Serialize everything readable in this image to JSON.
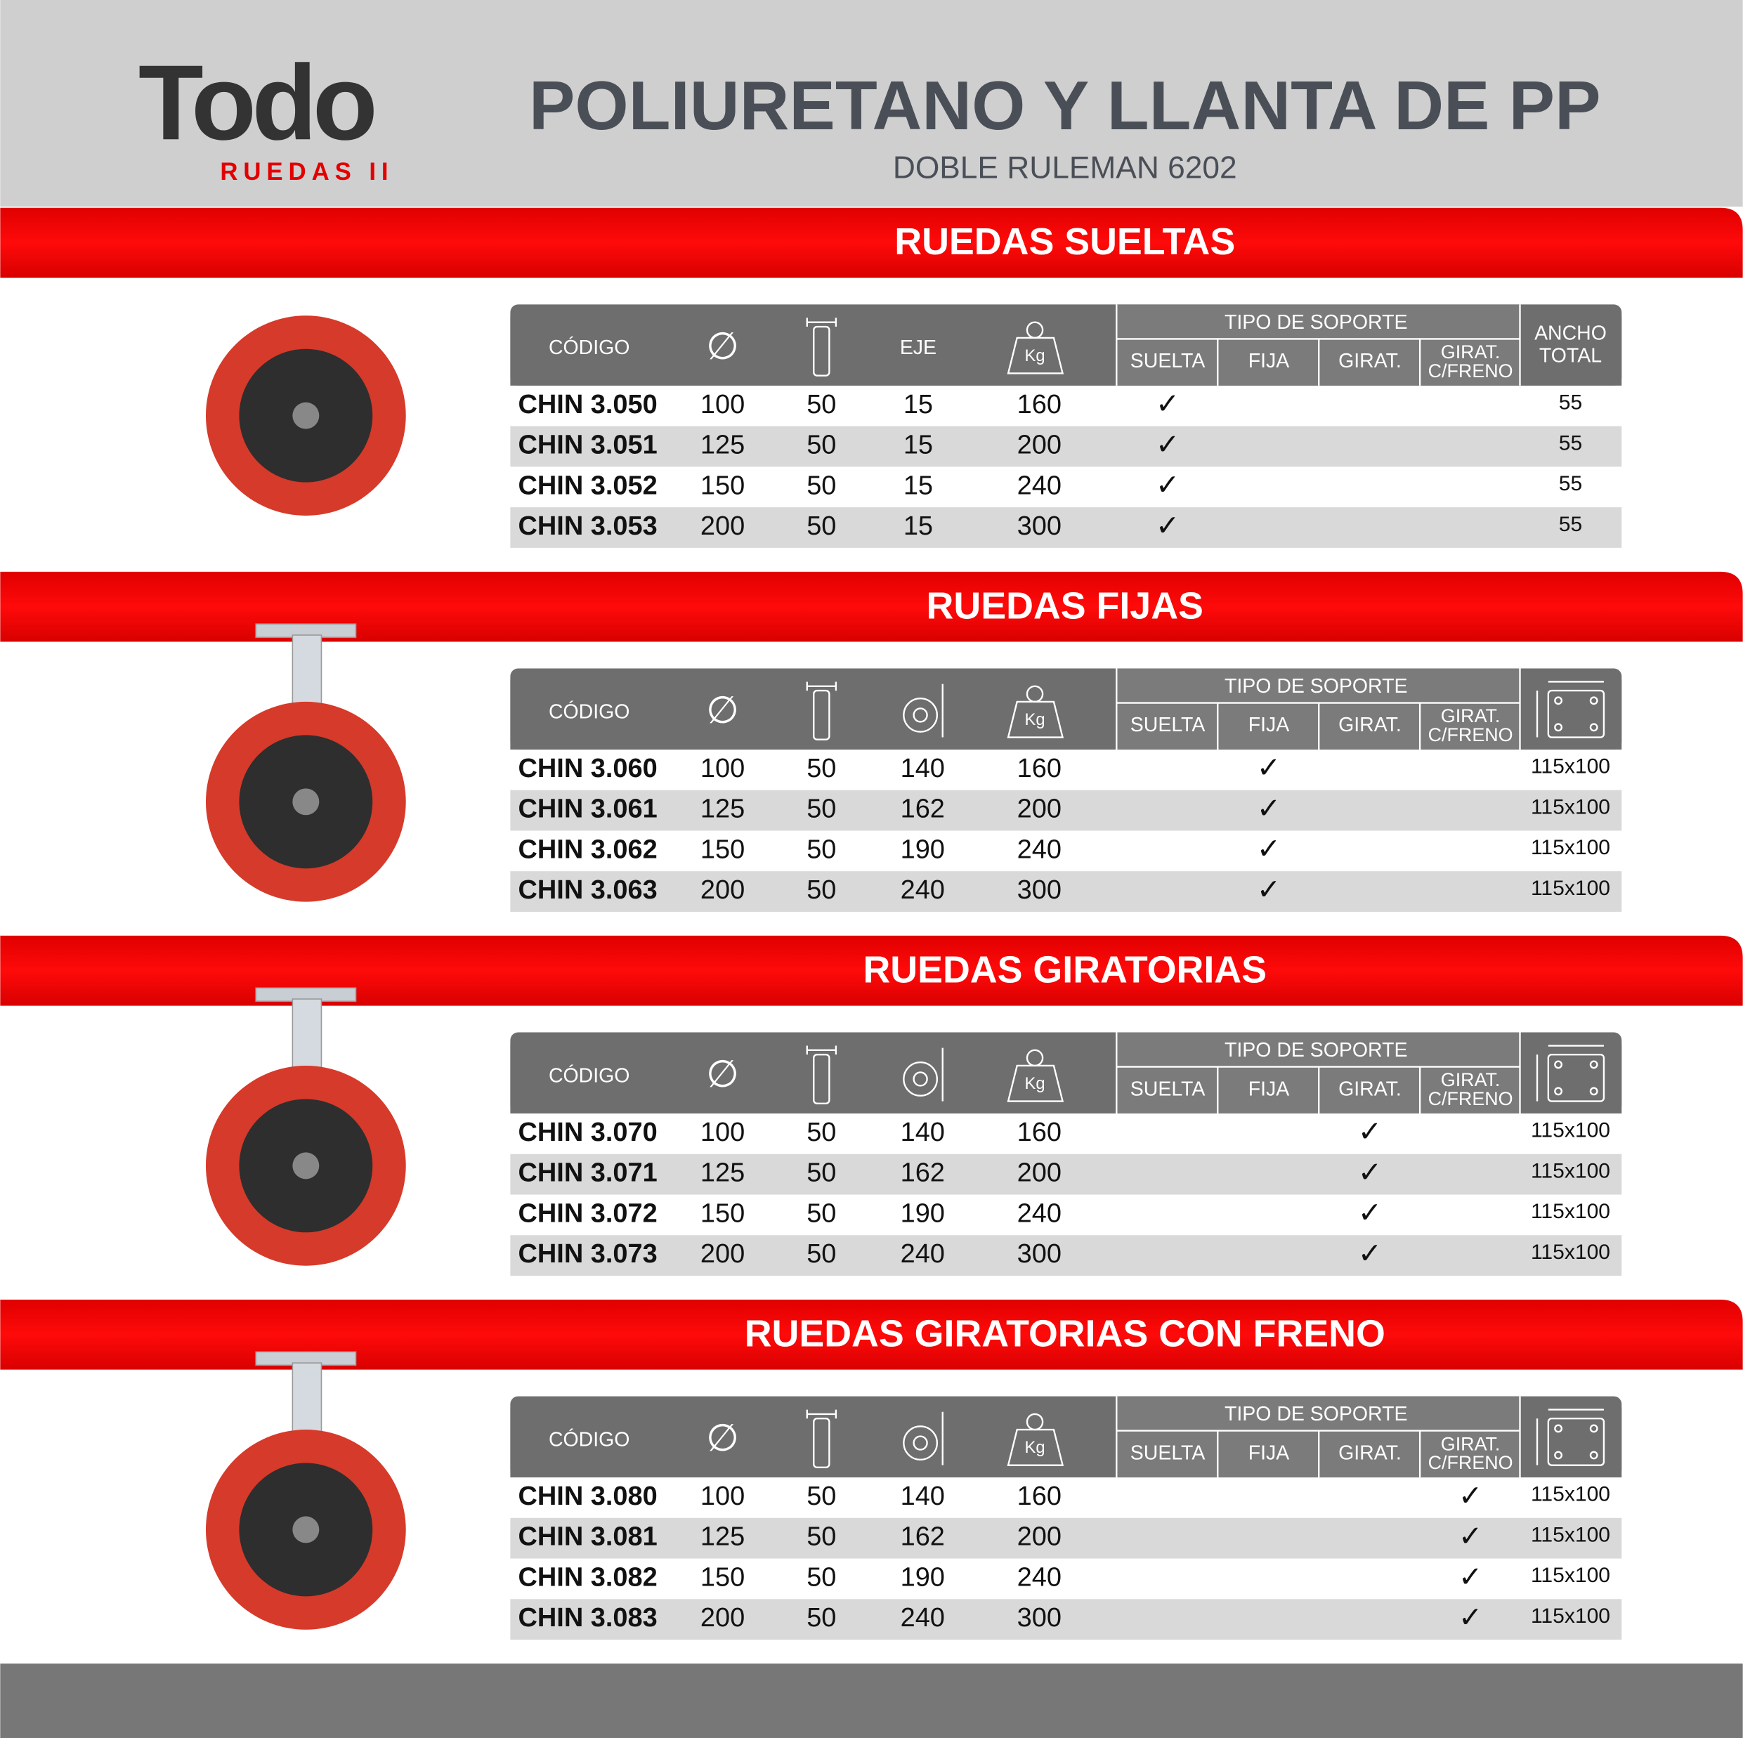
{
  "header": {
    "logo_word": "Todo",
    "logo_sub": "RUEDAS II",
    "title": "POLIURETANO Y LLANTA DE PP",
    "subtitle": "DOBLE RULEMAN 6202"
  },
  "sections": [
    {
      "title": "RUEDAS SUELTAS",
      "headers": {
        "code": "CÓDIGO",
        "axle": "EJE",
        "support": "TIPO DE SOPORTE",
        "support_types": [
          "SUELTA",
          "FIJA",
          "GIRAT.",
          [
            "GIRAT.",
            "C/FRENO"
          ]
        ],
        "total_width": [
          "ANCHO",
          "TOTAL"
        ]
      },
      "rows": [
        [
          "CHIN 3.050",
          "100",
          "50",
          "15",
          "160",
          "✓",
          null,
          null,
          null,
          "55"
        ],
        [
          "CHIN 3.051",
          "125",
          "50",
          "15",
          "200",
          "✓",
          null,
          null,
          null,
          "55"
        ],
        [
          "CHIN 3.052",
          "150",
          "50",
          "15",
          "240",
          "✓",
          null,
          null,
          null,
          "55"
        ],
        [
          "CHIN 3.053",
          "200",
          "50",
          "15",
          "300",
          "✓",
          null,
          null,
          null,
          "55"
        ]
      ]
    },
    {
      "title": "RUEDAS FIJAS",
      "headers": {
        "code": "CÓDIGO",
        "support": "TIPO DE SOPORTE",
        "support_types": [
          "SUELTA",
          "FIJA",
          "GIRAT.",
          [
            "GIRAT.",
            "C/FRENO"
          ]
        ]
      },
      "rows": [
        [
          "CHIN 3.060",
          "100",
          "50",
          "140",
          "160",
          null,
          "✓",
          null,
          null,
          "115x100"
        ],
        [
          "CHIN 3.061",
          "125",
          "50",
          "162",
          "200",
          null,
          "✓",
          null,
          null,
          "115x100"
        ],
        [
          "CHIN 3.062",
          "150",
          "50",
          "190",
          "240",
          null,
          "✓",
          null,
          null,
          "115x100"
        ],
        [
          "CHIN 3.063",
          "200",
          "50",
          "240",
          "300",
          null,
          "✓",
          null,
          null,
          "115x100"
        ]
      ]
    },
    {
      "title": "RUEDAS GIRATORIAS",
      "headers": {
        "code": "CÓDIGO",
        "support": "TIPO DE SOPORTE",
        "support_types": [
          "SUELTA",
          "FIJA",
          "GIRAT.",
          [
            "GIRAT.",
            "C/FRENO"
          ]
        ]
      },
      "rows": [
        [
          "CHIN 3.070",
          "100",
          "50",
          "140",
          "160",
          null,
          null,
          "✓",
          null,
          "115x100"
        ],
        [
          "CHIN 3.071",
          "125",
          "50",
          "162",
          "200",
          null,
          null,
          "✓",
          null,
          "115x100"
        ],
        [
          "CHIN 3.072",
          "150",
          "50",
          "190",
          "240",
          null,
          null,
          "✓",
          null,
          "115x100"
        ],
        [
          "CHIN 3.073",
          "200",
          "50",
          "240",
          "300",
          null,
          null,
          "✓",
          null,
          "115x100"
        ]
      ]
    },
    {
      "title": "RUEDAS GIRATORIAS CON FRENO",
      "headers": {
        "code": "CÓDIGO",
        "support": "TIPO DE SOPORTE",
        "support_types": [
          "SUELTA",
          "FIJA",
          "GIRAT.",
          [
            "GIRAT.",
            "C/FRENO"
          ]
        ]
      },
      "rows": [
        [
          "CHIN 3.080",
          "100",
          "50",
          "140",
          "160",
          null,
          null,
          null,
          "✓",
          "115x100"
        ],
        [
          "CHIN 3.081",
          "125",
          "50",
          "162",
          "200",
          null,
          null,
          null,
          "✓",
          "115x100"
        ],
        [
          "CHIN 3.082",
          "150",
          "50",
          "190",
          "240",
          null,
          null,
          null,
          "✓",
          "115x100"
        ],
        [
          "CHIN 3.083",
          "200",
          "50",
          "240",
          "300",
          null,
          null,
          null,
          "✓",
          "115x100"
        ]
      ]
    }
  ]
}
